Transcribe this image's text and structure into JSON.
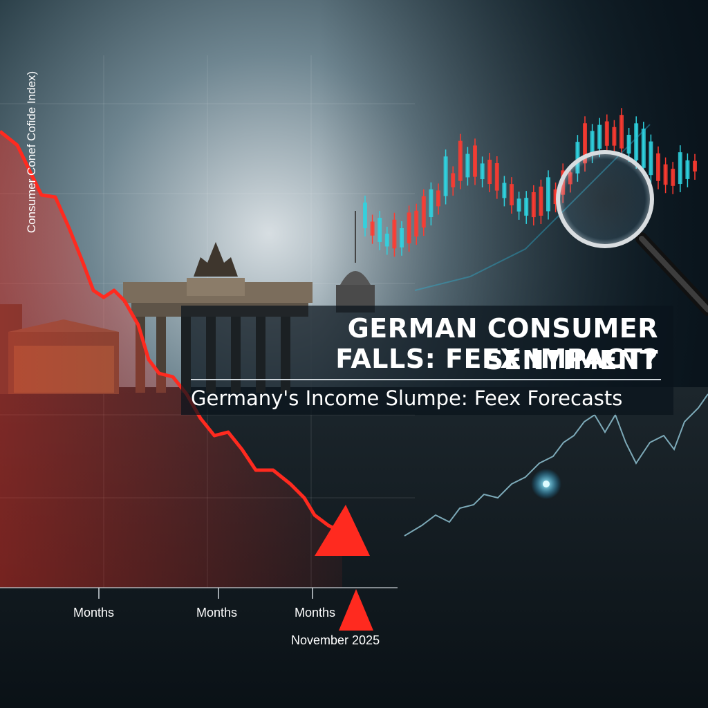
{
  "headline": {
    "line1": "GERMAN CONSUMER SENTIMENT",
    "line2": "FALLS: FEEX IMPACT?",
    "subheadline": "Germany's Income Slumpe: Feex Forecasts"
  },
  "chart": {
    "y_axis_label": "Consumer Conef Cofide Index)",
    "x_tick_labels": [
      "Months",
      "Months",
      "Months"
    ],
    "date_marker": "November 2025",
    "trend_direction": "down"
  },
  "colors": {
    "decline_red": "#ff2a1f",
    "rise_cyan": "#2ee6ff",
    "candle_red": "#ff3b30",
    "candle_teal": "#2fd3e0"
  },
  "icons": [
    "magnifying-glass-icon",
    "down-arrow-icon",
    "date-marker-triangle-icon"
  ]
}
